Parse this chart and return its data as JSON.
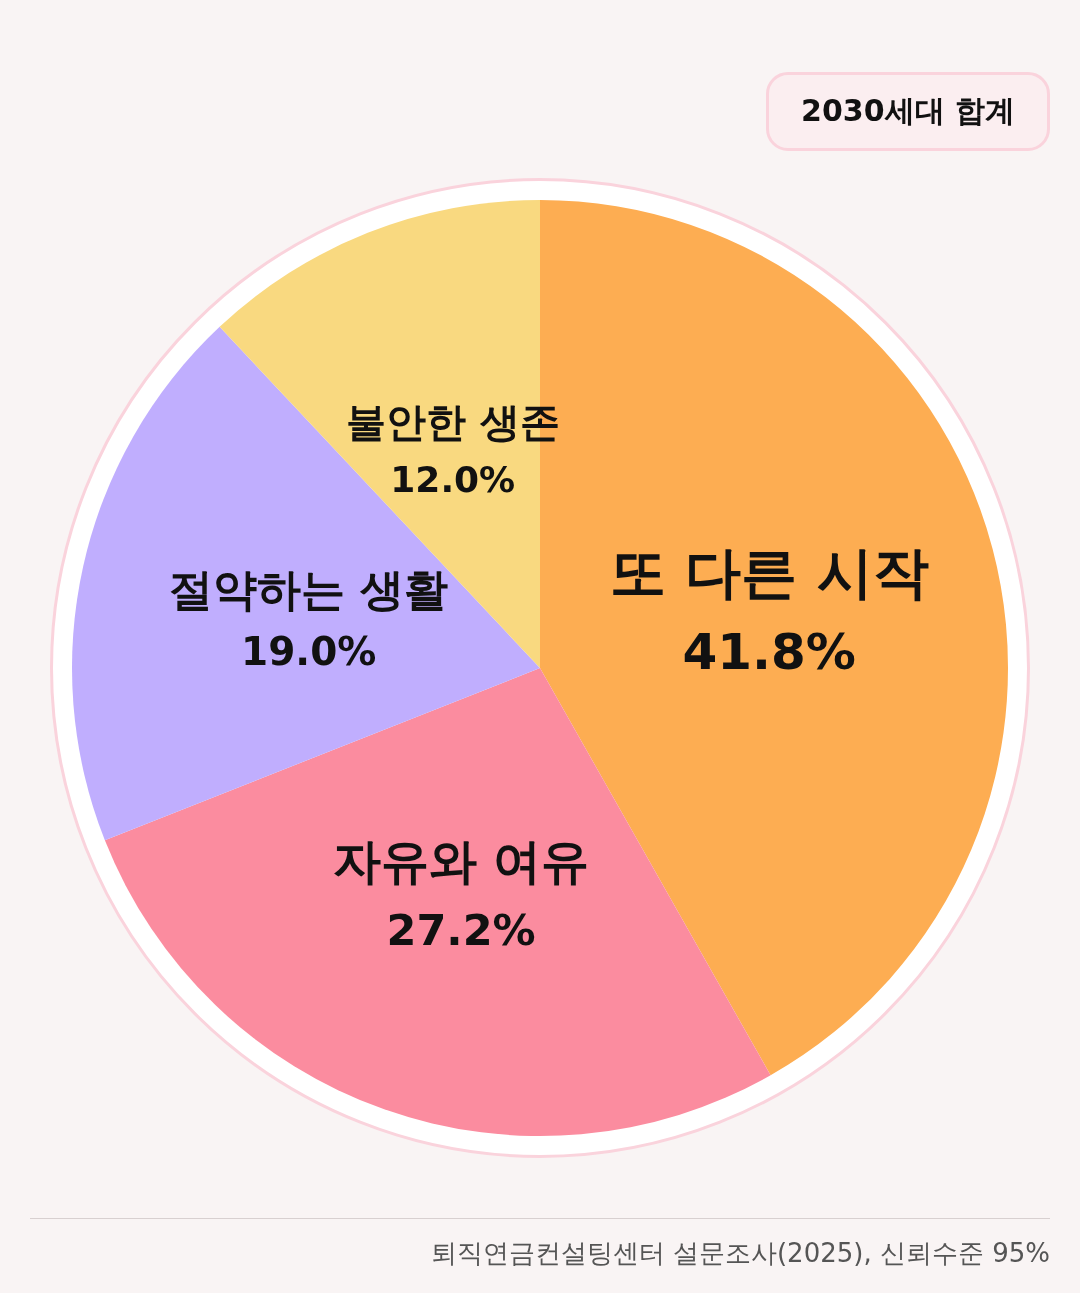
{
  "chart_data": {
    "type": "pie",
    "subtitle": "2030세대 합계",
    "categories": [
      "또 다른 시작",
      "자유와 여유",
      "절약하는 생활",
      "불안한 생존"
    ],
    "values": [
      41.8,
      27.2,
      19.0,
      12.0
    ],
    "value_labels": [
      "41.8%",
      "27.2%",
      "19.0%",
      "12.0%"
    ],
    "colors": [
      "#fdad52",
      "#fb8c9f",
      "#c0aefe",
      "#f9d980"
    ],
    "annotations": [
      "퇴직연금컨설팅센터 설문조사(2025), 신뢰수준 95%"
    ]
  }
}
